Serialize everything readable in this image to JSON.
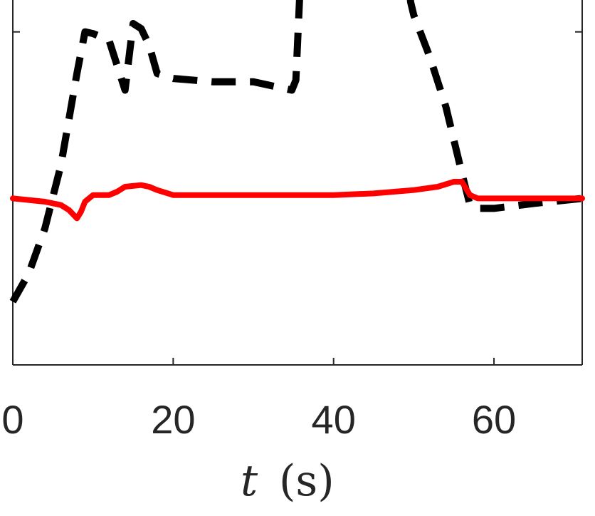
{
  "chart_data": {
    "type": "line",
    "title": "",
    "xlabel": "t",
    "xlabel_unit": "(s)",
    "ylabel": "",
    "xlim": [
      0,
      71
    ],
    "ylim": [
      -1,
      1.2
    ],
    "xticks": [
      0,
      20,
      40,
      60
    ],
    "xtick_labels": [
      "0",
      "20",
      "40",
      "60"
    ],
    "yticks": [
      -1,
      0,
      1,
      2
    ],
    "grid": false,
    "legend": "none",
    "series": [
      {
        "style": "dashed",
        "color": "#000000",
        "x": [
          0,
          2,
          4,
          6,
          8,
          9,
          10,
          12,
          14,
          15,
          16,
          17,
          18,
          20,
          25,
          30,
          34.8,
          35.3,
          36,
          40,
          45,
          49,
          49.6,
          50,
          52,
          54,
          56,
          57,
          58,
          60,
          65,
          71
        ],
        "y": [
          -0.62,
          -0.45,
          -0.18,
          0.2,
          0.75,
          1.0,
          0.99,
          0.95,
          0.65,
          1.05,
          1.02,
          0.92,
          0.75,
          0.72,
          0.7,
          0.7,
          0.65,
          0.71,
          1.45,
          1.57,
          1.6,
          1.58,
          1.18,
          1.1,
          0.85,
          0.55,
          0.15,
          -0.04,
          -0.06,
          -0.06,
          -0.03,
          0.0
        ]
      },
      {
        "style": "solid",
        "color": "#ff0000",
        "x": [
          0,
          4,
          6,
          7,
          8,
          8.5,
          9,
          10,
          12,
          13,
          14,
          16,
          17,
          18,
          20,
          25,
          30,
          35,
          40,
          45,
          50,
          53,
          55,
          56,
          57,
          58,
          60,
          65,
          71
        ],
        "y": [
          0.0,
          -0.02,
          -0.04,
          -0.07,
          -0.12,
          -0.08,
          -0.02,
          0.02,
          0.02,
          0.04,
          0.07,
          0.08,
          0.07,
          0.05,
          0.02,
          0.02,
          0.02,
          0.02,
          0.02,
          0.03,
          0.05,
          0.07,
          0.1,
          0.1,
          0.02,
          0.0,
          0.0,
          0.0,
          0.0
        ]
      }
    ]
  }
}
